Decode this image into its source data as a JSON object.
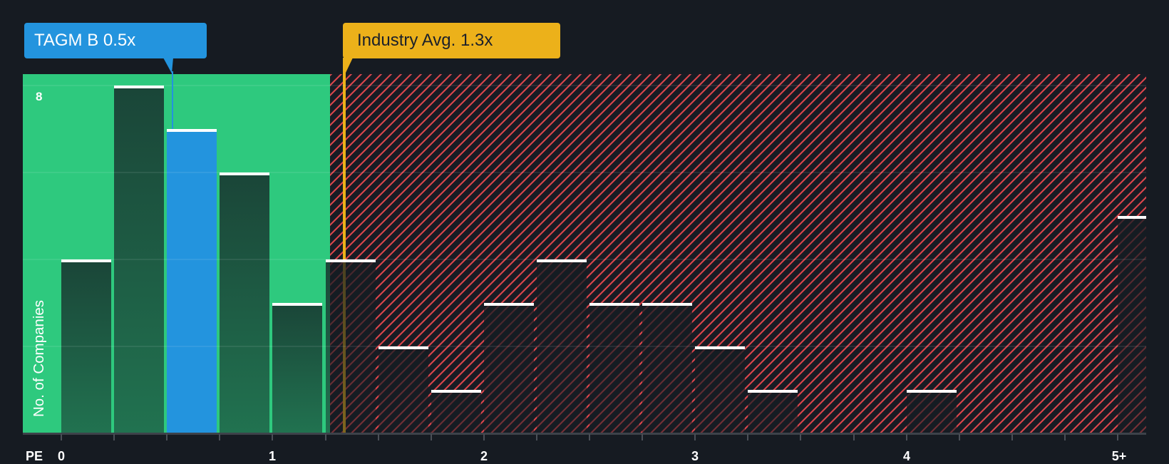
{
  "callouts": {
    "company": {
      "label": "TAGM B 0.5x",
      "color": "#2394de"
    },
    "industry": {
      "label": "Industry Avg. 1.3x",
      "color": "#ecb11a"
    }
  },
  "axes": {
    "x_title": "PE",
    "y_title": "No. of Companies",
    "y_tick_label": "8",
    "x_tick_labels": [
      "0",
      "1",
      "2",
      "3",
      "4",
      "5+"
    ]
  },
  "colors": {
    "background": "#161b22",
    "good_zone": "#2ec97e",
    "bad_zone_hatch": "#d9454b",
    "highlight_bar": "#2394de",
    "industry_line": "#ecb11a",
    "bar_cap": "#ffffff"
  },
  "chart_data": {
    "type": "bar",
    "title": "",
    "xlabel": "PE",
    "ylabel": "No. of Companies",
    "categories": [
      "0-0.25",
      "0.25-0.5",
      "0.5-0.75",
      "0.75-1",
      "1-1.25",
      "1.25-1.5",
      "1.5-1.75",
      "1.75-2",
      "2-2.25",
      "2.25-2.5",
      "2.5-2.75",
      "2.75-3",
      "3-3.25",
      "3.25-3.5",
      "3.5-3.75",
      "3.75-4",
      "4-4.25",
      "4.25-4.5",
      "4.5-4.75",
      "4.75-5",
      "5+"
    ],
    "values": [
      4,
      8,
      7,
      6,
      3,
      4,
      2,
      1,
      3,
      4,
      3,
      3,
      2,
      1,
      0,
      0,
      1,
      0,
      0,
      0,
      5
    ],
    "highlight": {
      "index": 2,
      "label": "TAGM B",
      "value": 0.5
    },
    "reference_line": {
      "label": "Industry Avg.",
      "value": 1.3
    },
    "x_tick_labels": [
      "0",
      "1",
      "2",
      "3",
      "4",
      "5+"
    ],
    "y_tick_labels": [
      "8"
    ],
    "gridline_values": [
      2,
      4,
      6,
      8
    ],
    "xlim": [
      0,
      5.2
    ],
    "ylim": [
      0,
      8.3
    ],
    "grid": true,
    "legend": "none"
  }
}
